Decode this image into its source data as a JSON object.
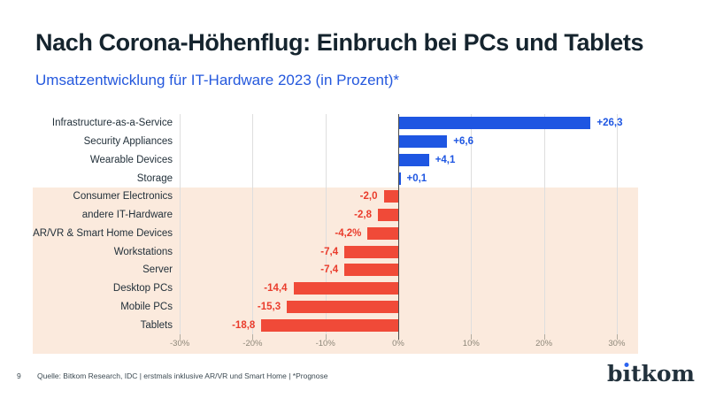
{
  "header": {
    "title": "Nach Corona-Höhenflug: Einbruch bei PCs und Tablets",
    "subtitle": "Umsatzentwicklung für IT-Hardware 2023 (in Prozent)*"
  },
  "chart_data": {
    "type": "bar",
    "orientation": "horizontal",
    "title": "Umsatzentwicklung für IT-Hardware 2023 (in Prozent)*",
    "categories": [
      "Infrastructure-as-a-Service",
      "Security Appliances",
      "Wearable Devices",
      "Storage",
      "Consumer Electronics",
      "andere IT-Hardware",
      "AR/VR & Smart Home Devices",
      "Workstations",
      "Server",
      "Desktop PCs",
      "Mobile PCs",
      "Tablets"
    ],
    "values": [
      26.3,
      6.6,
      4.1,
      0.1,
      -2.0,
      -2.8,
      -4.2,
      -7.4,
      -7.4,
      -14.4,
      -15.3,
      -18.8
    ],
    "value_labels": [
      "+26,3",
      "+6,6",
      "+4,1",
      "+0,1",
      "-2,0",
      "-2,8",
      "-4,2%",
      "-7,4",
      "-7,4",
      "-14,4",
      "-15,3",
      "-18,8"
    ],
    "xlim": [
      -30,
      30
    ],
    "x_tick_values": [
      -30,
      -20,
      -10,
      0,
      10,
      20,
      30
    ],
    "x_tick_labels": [
      "-30%",
      "-20%",
      "-10%",
      "0%",
      "10%",
      "20%",
      "30%"
    ],
    "grid": true,
    "legend": "none",
    "colors": {
      "positive_bar": "#1e56e2",
      "negative_bar": "#f04a38",
      "positive_label": "#1e56e2",
      "negative_label": "#ea3c2c",
      "negative_band": "#fbeadd",
      "gridline": "#dedede",
      "zero_line": "#4d4d4d",
      "tick": "#b3ada1"
    }
  },
  "footer": {
    "page_number": "9",
    "source": "Quelle: Bitkom Research, IDC | erstmals inklusive AR/VR und Smart Home | *Prognose",
    "logo_text": "bitkom",
    "logo_dot_color": "#2b63f0"
  }
}
